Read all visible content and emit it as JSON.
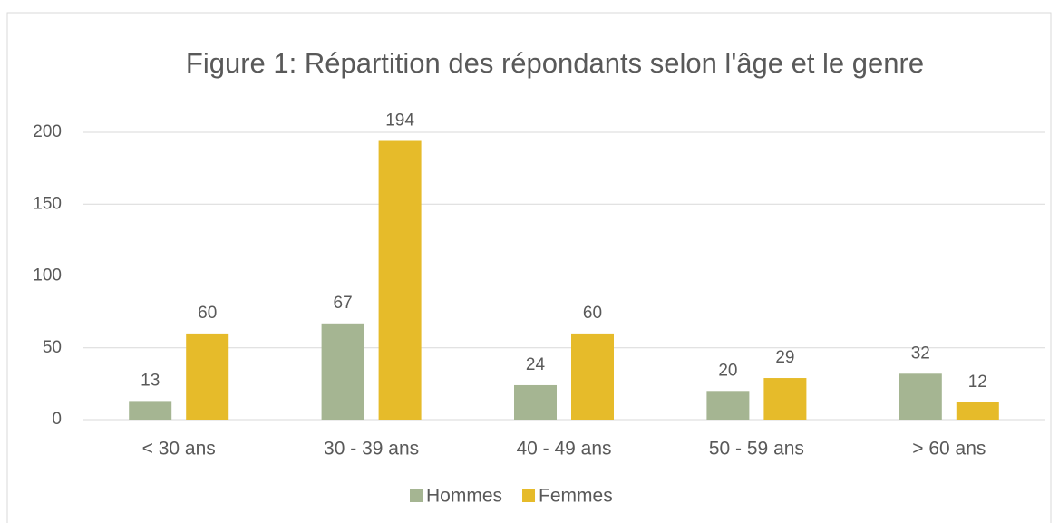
{
  "chart_data": {
    "type": "bar",
    "title": "Figure 1: Répartition des répondants selon l'âge et le genre",
    "categories": [
      "< 30 ans",
      "30 - 39 ans",
      "40 - 49 ans",
      "50 - 59 ans",
      "> 60 ans"
    ],
    "series": [
      {
        "name": "Hommes",
        "color": "#a5b592",
        "values": [
          13,
          67,
          24,
          20,
          32
        ]
      },
      {
        "name": "Femmes",
        "color": "#e6bb2a",
        "values": [
          60,
          194,
          60,
          29,
          12
        ]
      }
    ],
    "ylim": [
      0,
      200
    ],
    "yticks": [
      0,
      50,
      100,
      150,
      200
    ],
    "grid": true,
    "legend": "bottom"
  }
}
